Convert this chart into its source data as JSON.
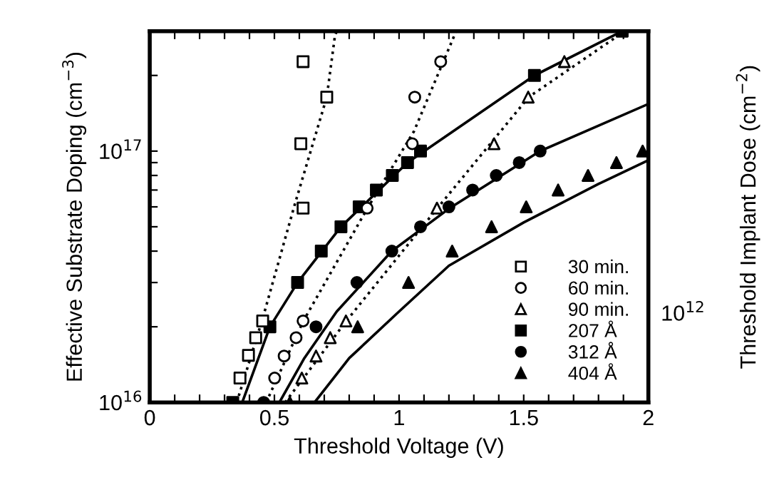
{
  "chart_data": {
    "type": "scatter",
    "xlabel": "Threshold Voltage (V)",
    "ylabel": "Effective Substrate Doping (cm$^{−3}$)",
    "y2label": "Threshold Implant Dose (cm$^{−2}$)",
    "log": "y",
    "xlim": [
      0,
      2
    ],
    "ylim": [
      1e+16,
      3e+17
    ],
    "annotations": [
      "10$^{12}$"
    ],
    "xticks": [
      0,
      {
        "value": 0.1,
        "label": null
      },
      {
        "value": 0.2,
        "label": null
      },
      {
        "value": 0.3,
        "label": null
      },
      {
        "value": 0.4,
        "label": null
      },
      0.5,
      {
        "value": 0.6,
        "label": null
      },
      {
        "value": 0.7,
        "label": null
      },
      {
        "value": 0.8,
        "label": null
      },
      {
        "value": 0.9,
        "label": null
      },
      1,
      {
        "value": 1.1,
        "label": null
      },
      {
        "value": 1.2,
        "label": null
      },
      {
        "value": 1.3,
        "label": null
      },
      {
        "value": 1.4,
        "label": null
      },
      1.5,
      {
        "value": 1.6,
        "label": null
      },
      {
        "value": 1.7,
        "label": null
      },
      {
        "value": 1.8,
        "label": null
      },
      {
        "value": 1.9,
        "label": null
      },
      2
    ],
    "yticks": [
      {
        "value": 1e+16,
        "label": "10$^{16}$"
      },
      {
        "value": 2e+16,
        "label": null
      },
      {
        "value": 3e+16,
        "label": null
      },
      {
        "value": 4e+16,
        "label": null
      },
      {
        "value": 5e+16,
        "label": null
      },
      {
        "value": 6e+16,
        "label": null
      },
      {
        "value": 7e+16,
        "label": null
      },
      {
        "value": 8e+16,
        "label": null
      },
      {
        "value": 9e+16,
        "label": null
      },
      {
        "value": 1e+17,
        "label": "10$^{17}$"
      },
      {
        "value": 2e+17,
        "label": null
      }
    ],
    "grid": false,
    "legend": "bottom right",
    "series": [
      {
        "name": "30 min.",
        "marker": "square",
        "color": "#ffffff",
        "x": [
          0.362,
          0.396,
          0.425,
          0.453,
          0.615,
          0.606,
          0.71,
          0.615
        ],
        "values": [
          1.25e+16,
          1.54e+16,
          1.81e+16,
          2.11e+16,
          5.93e+16,
          1.07e+17,
          1.64e+17,
          2.27e+17
        ]
      },
      {
        "name": "60 min.",
        "marker": "circle",
        "color": "#ffffff",
        "x": [
          0.501,
          0.539,
          0.587,
          0.615,
          0.872,
          1.053,
          1.063,
          1.167
        ],
        "values": [
          1.25e+16,
          1.53e+16,
          1.81e+16,
          2.11e+16,
          5.93e+16,
          1.07e+17,
          1.64e+17,
          2.27e+17
        ]
      },
      {
        "name": "90 min.",
        "marker": "triangle",
        "color": "#ffffff",
        "x": [
          0.61,
          0.667,
          0.724,
          0.787,
          1.152,
          1.381,
          1.518,
          1.663
        ],
        "values": [
          1.25e+16,
          1.53e+16,
          1.81e+16,
          2.11e+16,
          5.93e+16,
          1.07e+17,
          1.64e+17,
          2.27e+17
        ]
      },
      {
        "name": "207 Å",
        "marker": "square",
        "color": "#000000",
        "x": [
          0.333,
          0.482,
          0.593,
          0.688,
          0.767,
          0.84,
          0.909,
          0.973,
          1.034,
          1.086,
          1.543,
          1.895
        ],
        "values": [
          1e+16,
          2e+16,
          3e+16,
          4e+16,
          5e+16,
          6e+16,
          7e+16,
          8e+16,
          9e+16,
          1e+17,
          2e+17,
          3e+17
        ]
      },
      {
        "name": "312 Å",
        "marker": "circle",
        "color": "#000000",
        "x": [
          0.457,
          0.667,
          0.831,
          0.971,
          1.086,
          1.2,
          1.295,
          1.39,
          1.482,
          1.566
        ],
        "values": [
          1e+16,
          2e+16,
          3e+16,
          4e+16,
          5e+16,
          6e+16,
          7e+16,
          8e+16,
          9e+16,
          1e+17
        ]
      },
      {
        "name": "404 Å",
        "marker": "triangle",
        "color": "#000000",
        "x": [
          0.562,
          0.834,
          1.038,
          1.213,
          1.371,
          1.51,
          1.638,
          1.758,
          1.872,
          1.977
        ],
        "values": [
          1e+16,
          2e+16,
          3e+16,
          4e+16,
          5e+16,
          6e+16,
          7e+16,
          8e+16,
          9e+16,
          1e+17
        ]
      },
      {
        "type": "line",
        "line_style": "dotted",
        "color": "#000000",
        "x": [
          0.349,
          0.453,
          0.581,
          0.71,
          0.743,
          0.75
        ],
        "values": [
          1e+16,
          2.16e+16,
          6.1e+16,
          1.64e+17,
          2.88e+17,
          3e+17
        ]
      },
      {
        "type": "line",
        "line_style": "dotted",
        "color": "#000000",
        "x": [
          0.467,
          0.615,
          0.872,
          1.06,
          1.229
        ],
        "values": [
          1e+16,
          2.1e+16,
          5.9e+16,
          1.2e+17,
          3e+17
        ]
      },
      {
        "type": "line",
        "line_style": "dotted",
        "color": "#000000",
        "x": [
          0.543,
          0.787,
          1.152,
          1.52,
          1.905
        ],
        "values": [
          1e+16,
          2.1e+16,
          5.9e+16,
          1.64e+17,
          3e+17
        ]
      },
      {
        "type": "line",
        "line_style": "solid",
        "color": "#000000",
        "x": [
          0.371,
          0.482,
          0.593,
          0.767,
          1.034,
          1.543,
          1.895
        ],
        "values": [
          1e+16,
          2e+16,
          3e+16,
          5e+16,
          9e+16,
          2e+17,
          3e+17
        ]
      },
      {
        "type": "line",
        "line_style": "solid",
        "color": "#000000",
        "x": [
          0.52,
          0.62,
          0.75,
          0.971,
          1.2,
          1.566,
          2.0
        ],
        "values": [
          1e+16,
          1.5e+16,
          2.3e+16,
          4e+16,
          5.9e+16,
          1e+17,
          1.54e+17
        ]
      },
      {
        "type": "line",
        "line_style": "solid",
        "color": "#000000",
        "x": [
          0.661,
          0.8,
          1.0,
          1.2,
          1.5,
          1.8,
          2.0
        ],
        "values": [
          1e+16,
          1.5e+16,
          2.3e+16,
          3.5e+16,
          5.2e+16,
          7.4e+16,
          9.2e+16
        ]
      }
    ]
  }
}
